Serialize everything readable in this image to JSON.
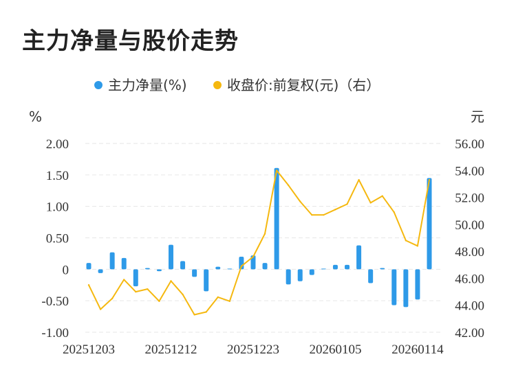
{
  "title": "主力净量与股价走势",
  "legend": [
    {
      "label": "主力净量(%)",
      "color": "#2e9ae8"
    },
    {
      "label": "收盘价:前复权(元)（右）",
      "color": "#f5b80f"
    }
  ],
  "chart_data": {
    "type": "bar+line",
    "title": "主力净量与股价走势",
    "left_axis": {
      "unit": "%",
      "ticks": [
        "2.00",
        "1.50",
        "1.00",
        "0.50",
        "0",
        "-0.50",
        "-1.00"
      ],
      "range": [
        -1.0,
        2.0
      ]
    },
    "right_axis": {
      "unit": "元",
      "ticks": [
        "56.00",
        "54.00",
        "52.00",
        "50.00",
        "48.00",
        "46.00",
        "44.00",
        "42.00"
      ],
      "range": [
        42.0,
        56.0
      ]
    },
    "x_tick_labels": [
      "20251203",
      "20251212",
      "20251223",
      "20260105",
      "20260114"
    ],
    "x_tick_indices": [
      0,
      7,
      14,
      21,
      28
    ],
    "grid": true,
    "series": [
      {
        "name": "主力净量(%)",
        "type": "bar",
        "color": "#2e9ae8",
        "values": [
          0.1,
          -0.06,
          0.27,
          0.18,
          -0.27,
          0.02,
          -0.03,
          0.39,
          0.13,
          -0.12,
          -0.35,
          0.04,
          0.01,
          0.2,
          0.22,
          0.1,
          1.61,
          -0.24,
          -0.19,
          -0.09,
          0.01,
          0.07,
          0.07,
          0.38,
          -0.22,
          0.02,
          -0.57,
          -0.6,
          -0.48,
          1.45
        ]
      },
      {
        "name": "收盘价:前复权(元)（右）",
        "type": "line",
        "color": "#f5b80f",
        "values": [
          45.5,
          43.7,
          44.5,
          45.9,
          45.0,
          45.2,
          44.3,
          45.8,
          44.8,
          43.3,
          43.5,
          44.6,
          44.3,
          46.9,
          47.6,
          49.3,
          54.0,
          52.9,
          51.7,
          50.7,
          50.7,
          51.1,
          51.5,
          53.3,
          51.6,
          52.1,
          50.9,
          48.8,
          48.4,
          53.3
        ]
      }
    ]
  }
}
